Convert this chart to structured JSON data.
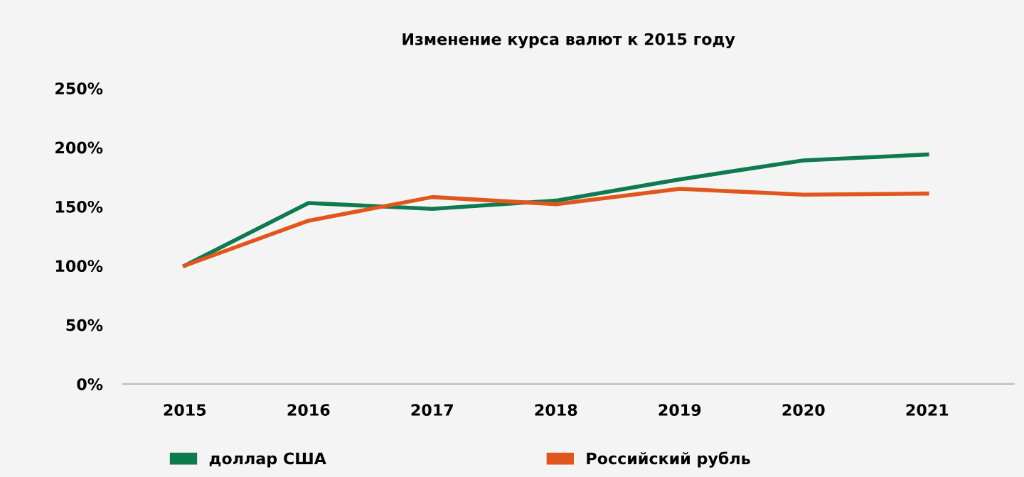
{
  "chart_data": {
    "type": "line",
    "title": "Изменение курса валют к 2015 году",
    "categories": [
      "2015",
      "2016",
      "2017",
      "2018",
      "2019",
      "2020",
      "2021"
    ],
    "series": [
      {
        "name": "доллар США",
        "color": "#0e7a4e",
        "values": [
          100,
          153,
          148,
          155,
          173,
          189,
          194
        ]
      },
      {
        "name": "Российский рубль",
        "color": "#e0561c",
        "values": [
          100,
          138,
          158,
          152,
          165,
          160,
          161
        ]
      }
    ],
    "ylim": [
      0,
      250
    ],
    "yticks": [
      {
        "value": 0,
        "label": "0%"
      },
      {
        "value": 50,
        "label": "50%"
      },
      {
        "value": 100,
        "label": "100%"
      },
      {
        "value": 150,
        "label": "150%"
      },
      {
        "value": 200,
        "label": "200%"
      },
      {
        "value": 250,
        "label": "250%"
      }
    ],
    "grid": false,
    "legend": "bottom",
    "marker": "none",
    "line_style": "solid"
  }
}
